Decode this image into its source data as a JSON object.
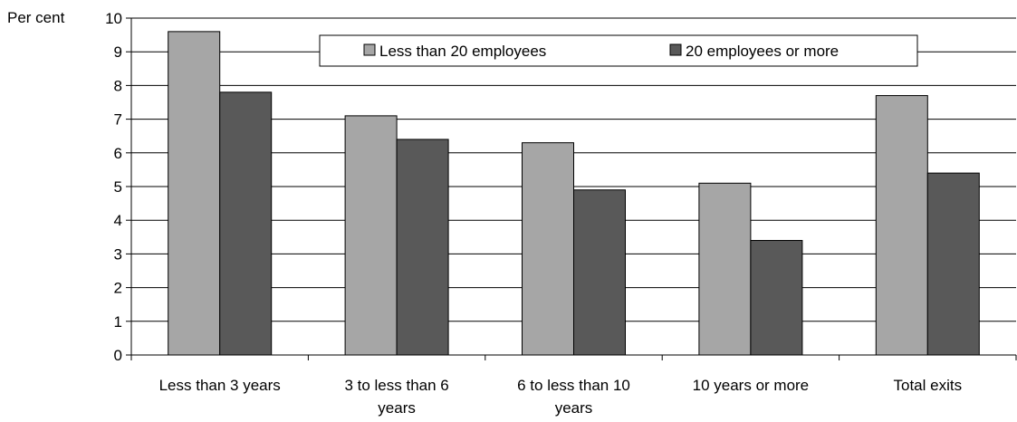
{
  "chart_data": {
    "type": "bar",
    "ylabel": "Per cent",
    "ylim": [
      0,
      10
    ],
    "yticks": [
      "0",
      "1",
      "2",
      "3",
      "4",
      "5",
      "6",
      "7",
      "8",
      "9",
      "10"
    ],
    "grid": true,
    "legend_position": "top-center",
    "categories": [
      [
        "Less than 3 years"
      ],
      [
        "3 to less than 6",
        "years"
      ],
      [
        "6 to less than 10",
        "years"
      ],
      [
        "10 years or more"
      ],
      [
        "Total exits"
      ]
    ],
    "series": [
      {
        "name": "Less than 20 employees",
        "color": "#a6a6a6",
        "values": [
          9.6,
          7.1,
          6.3,
          5.1,
          7.7
        ]
      },
      {
        "name": "20 employees or more",
        "color": "#595959",
        "values": [
          7.8,
          6.4,
          4.9,
          3.4,
          5.4
        ]
      }
    ]
  }
}
